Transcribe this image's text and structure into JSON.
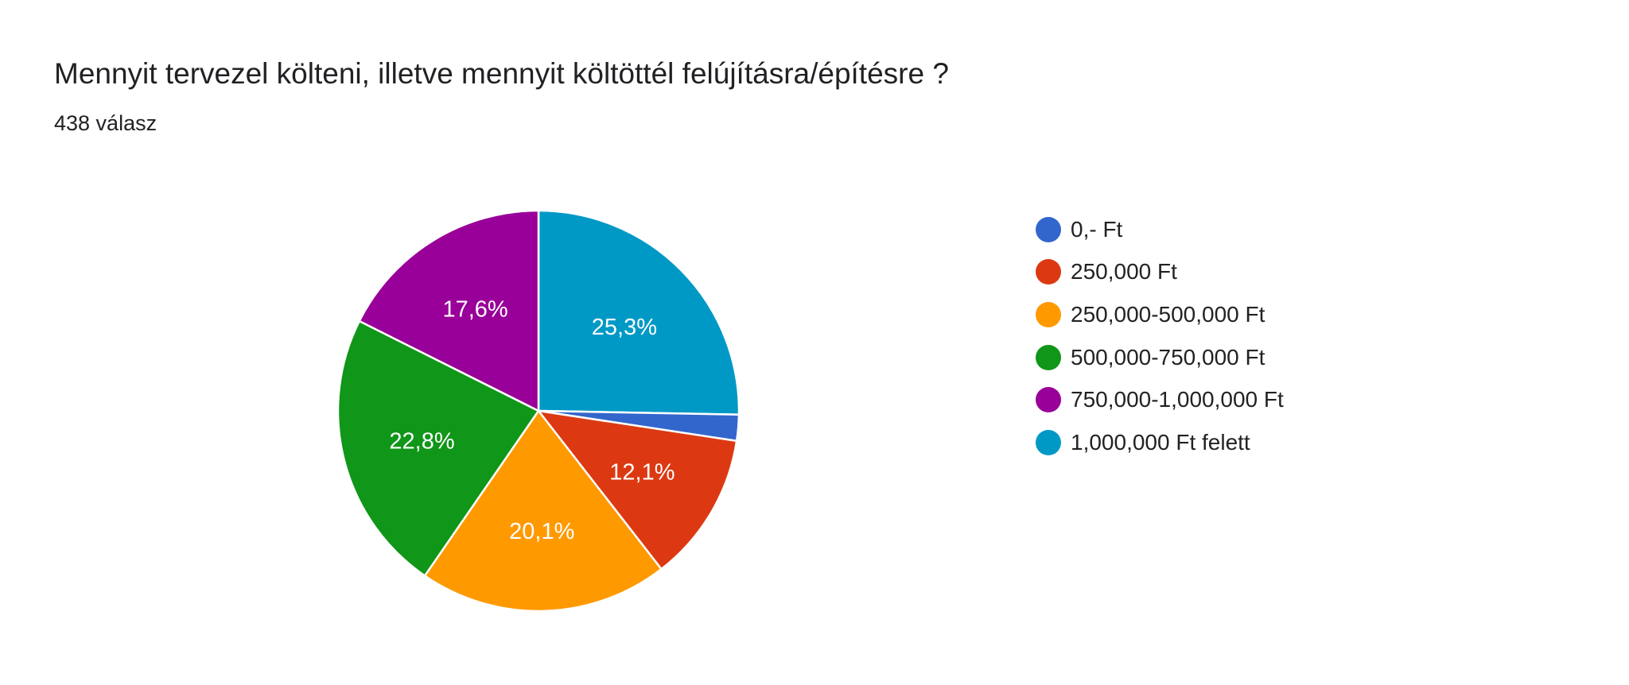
{
  "title": "Mennyit tervezel költeni, illetve mennyit költöttél felújításra/építésre ?",
  "subtitle": "438 válasz",
  "chart_data": {
    "type": "pie",
    "legend_position": "right",
    "legend": [
      {
        "label": "0,- Ft",
        "color": "#3366cc"
      },
      {
        "label": "250,000 Ft",
        "color": "#dc3912"
      },
      {
        "label": "250,000-500,000 Ft",
        "color": "#ff9900"
      },
      {
        "label": "500,000-750,000 Ft",
        "color": "#109618"
      },
      {
        "label": "750,000-1,000,000 Ft",
        "color": "#990099"
      },
      {
        "label": "1,000,000 Ft felett",
        "color": "#0099c6"
      }
    ],
    "slices": [
      {
        "label": "1,000,000 Ft felett",
        "value": 25.3,
        "text": "25,3%",
        "color": "#0099c6"
      },
      {
        "label": "0,- Ft",
        "value": 2.1,
        "text": "",
        "color": "#3366cc"
      },
      {
        "label": "250,000 Ft",
        "value": 12.1,
        "text": "12,1%",
        "color": "#dc3912"
      },
      {
        "label": "250,000-500,000 Ft",
        "value": 20.1,
        "text": "20,1%",
        "color": "#ff9900"
      },
      {
        "label": "500,000-750,000 Ft",
        "value": 22.8,
        "text": "22,8%",
        "color": "#109618"
      },
      {
        "label": "750,000-1,000,000 Ft",
        "value": 17.6,
        "text": "17,6%",
        "color": "#990099"
      }
    ]
  }
}
